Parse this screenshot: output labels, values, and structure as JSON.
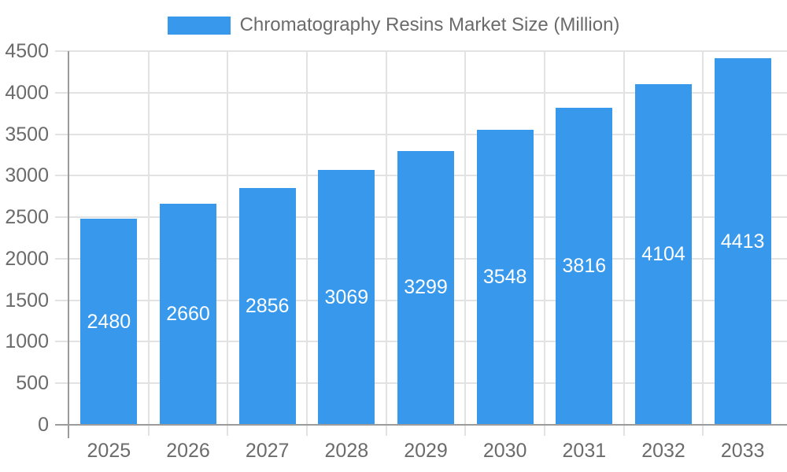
{
  "chart_data": {
    "type": "bar",
    "title": "Chromatography Resins Market Size (Million)",
    "legend": {
      "position": "top",
      "label": "Chromatography Resins Market Size (Million)"
    },
    "categories": [
      "2025",
      "2026",
      "2027",
      "2028",
      "2029",
      "2030",
      "2031",
      "2032",
      "2033"
    ],
    "values": [
      2480,
      2660,
      2856,
      3069,
      3299,
      3548,
      3816,
      4104,
      4413
    ],
    "value_labels_shown": true,
    "xlabel": "",
    "ylabel": "",
    "ylim": [
      0,
      4500
    ],
    "ytick_step": 500,
    "yticks": [
      "0",
      "500",
      "1000",
      "1500",
      "2000",
      "2500",
      "3000",
      "3500",
      "4000",
      "4500"
    ],
    "grid": true,
    "colors": {
      "bar": "#3899EC",
      "value_label": "#ffffff",
      "axis_text": "#6b6b6b",
      "grid_line": "#e2e2e2",
      "axis_line": "#9b9b9b",
      "background": "#ffffff"
    }
  }
}
